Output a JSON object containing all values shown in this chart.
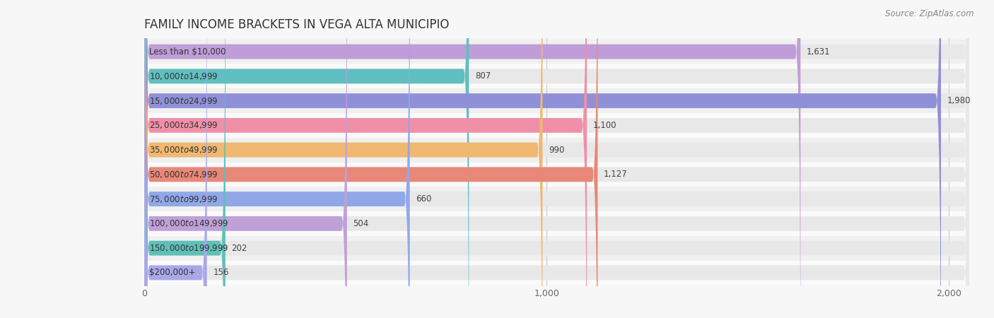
{
  "title": "FAMILY INCOME BRACKETS IN VEGA ALTA MUNICIPIO",
  "source": "Source: ZipAtlas.com",
  "categories": [
    "Less than $10,000",
    "$10,000 to $14,999",
    "$15,000 to $24,999",
    "$25,000 to $34,999",
    "$35,000 to $49,999",
    "$50,000 to $74,999",
    "$75,000 to $99,999",
    "$100,000 to $149,999",
    "$150,000 to $199,999",
    "$200,000+"
  ],
  "values": [
    1631,
    807,
    1980,
    1100,
    990,
    1127,
    660,
    504,
    202,
    156
  ],
  "bar_colors": [
    "#c09dd8",
    "#60bfc0",
    "#9090d8",
    "#f090a8",
    "#f0b870",
    "#e88878",
    "#90a8e8",
    "#c0a0d8",
    "#60c0b8",
    "#a8a8e8"
  ],
  "bar_bg_color": "#e8e8e8",
  "background_color": "#f7f7f7",
  "row_bg_colors": [
    "#f0f0f0",
    "#fafafa"
  ],
  "xlim_max": 2050,
  "xticks": [
    0,
    1000,
    2000
  ],
  "xticklabels": [
    "0",
    "1,000",
    "2,000"
  ],
  "title_fontsize": 12,
  "label_fontsize": 8.5,
  "value_fontsize": 8.5,
  "source_fontsize": 8.5
}
